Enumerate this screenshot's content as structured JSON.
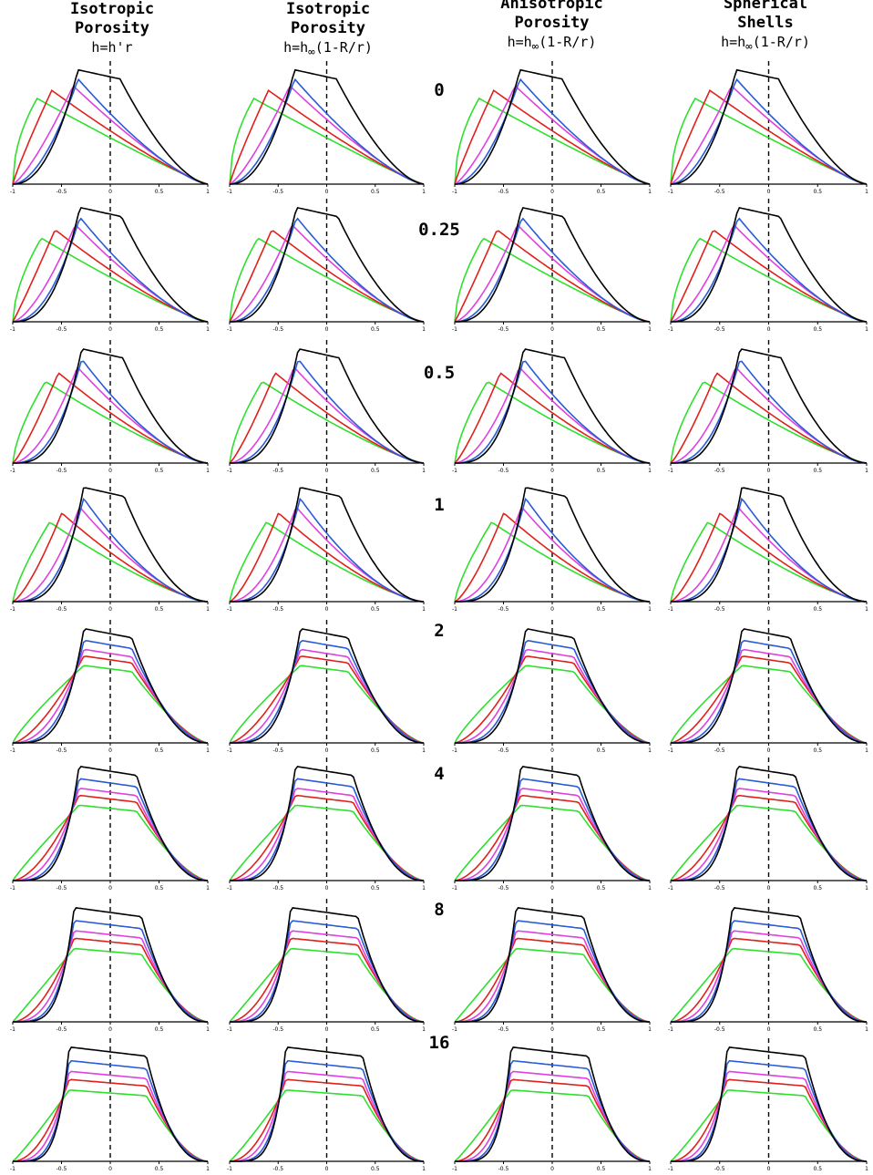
{
  "columns": [
    {
      "title_lines": [
        "Isotropic",
        "Porosity"
      ],
      "formula_parts": [
        "h=h'r",
        "",
        ""
      ]
    },
    {
      "title_lines": [
        "Isotropic",
        "Porosity"
      ],
      "formula_parts": [
        "h=h",
        "∞",
        "(1-R/r)"
      ]
    },
    {
      "title_lines": [
        "Anisotropic",
        "Porosity"
      ],
      "formula_parts": [
        "h=h",
        "∞",
        "(1-R/r)"
      ]
    },
    {
      "title_lines": [
        "Spherical",
        "Shells"
      ],
      "formula_parts": [
        "h=h",
        "∞",
        "(1-R/r)"
      ]
    }
  ],
  "row_labels": [
    "0",
    "0.25",
    "0.5",
    "1",
    "2",
    "4",
    "8",
    "16"
  ],
  "colors": {
    "black": "#000000",
    "blue": "#2a5bd7",
    "magenta": "#e040e0",
    "red": "#e0201a",
    "green": "#2ee02e"
  },
  "chart_data": {
    "type": "line",
    "layout": "4 columns x 8 rows of small line plots",
    "xlim": [
      -1,
      1
    ],
    "x_ticks": [
      "-1",
      "-0.5",
      "0",
      "0.5",
      "1"
    ],
    "reference_line_x": 0,
    "series_order": [
      "black",
      "blue",
      "magenta",
      "red",
      "green"
    ],
    "panel_series_x": [
      -1,
      -0.9,
      -0.8,
      -0.7,
      -0.6,
      -0.5,
      -0.4,
      -0.3,
      -0.2,
      -0.1,
      0,
      0.1,
      0.2,
      0.3,
      0.4,
      0.5,
      0.6,
      0.7,
      0.8,
      0.9,
      1
    ]
  }
}
